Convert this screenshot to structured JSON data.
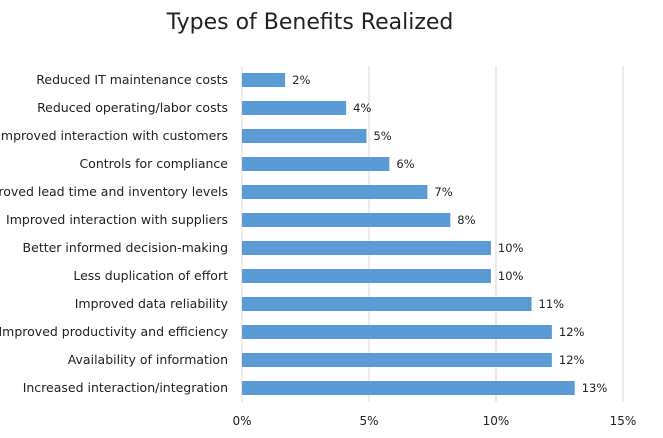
{
  "chart_data": {
    "type": "bar",
    "orientation": "horizontal",
    "title": "Types of Benefits Realized",
    "categories": [
      "Reduced IT maintenance costs",
      "Reduced operating/labor costs",
      "Improved interaction with customers",
      "Controls for compliance",
      "Improved lead time and inventory levels",
      "Improved interaction with suppliers",
      "Better informed decision-making",
      "Less duplication of effort",
      "Improved data reliability",
      "Improved productivity and efficiency",
      "Availability of information",
      "Increased interaction/integration"
    ],
    "values": [
      1.7,
      4.1,
      4.9,
      5.8,
      7.3,
      8.2,
      9.8,
      9.8,
      11.4,
      12.2,
      12.2,
      13.1
    ],
    "data_labels": [
      "2%",
      "4%",
      "5%",
      "6%",
      "7%",
      "8%",
      "10%",
      "10%",
      "11%",
      "12%",
      "12%",
      "13%"
    ],
    "xlim": [
      0,
      15
    ],
    "xticks": [
      0,
      5,
      10,
      15
    ],
    "xtick_labels": [
      "0%",
      "5%",
      "10%",
      "15%"
    ],
    "xlabel": "",
    "ylabel": "",
    "grid": "vertical",
    "legend": "none",
    "colors": {
      "bar": "#5b9bd5",
      "grid": "#d9d9d9",
      "text": "#222222"
    }
  }
}
